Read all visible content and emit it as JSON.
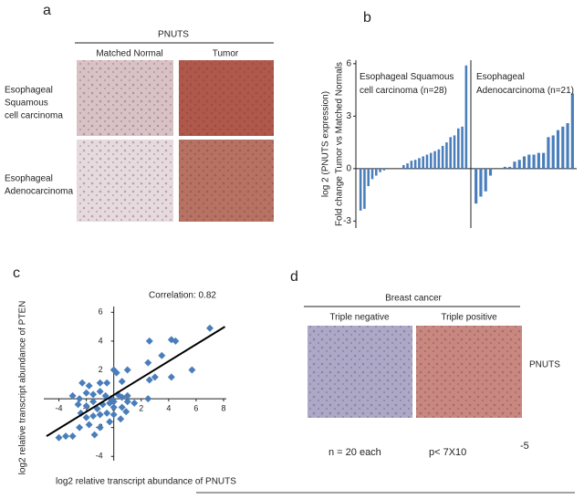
{
  "panel_labels": [
    "a",
    "b",
    "c",
    "d"
  ],
  "panel_a": {
    "title": "PNUTS",
    "columns": [
      "Matched Normal",
      "Tumor"
    ],
    "row_labels": [
      [
        "Esophageal",
        "Squamous",
        "cell carcinoma"
      ],
      [
        "Esophageal",
        "Adenocarcinoma"
      ]
    ]
  },
  "chart_data": [
    {
      "type": "bar",
      "ylabel": [
        "log 2 (PNUTS expression)",
        "Fold change Tumor vs Matched Normals"
      ],
      "ylim": [
        -3.4,
        6.2
      ],
      "yticks": [
        -3,
        0,
        3,
        6
      ],
      "series": [
        {
          "name": "Esophageal Squamous cell carcinoma (n=28)",
          "color": "#4a7ebb",
          "values": [
            -2.4,
            -2.3,
            -1.0,
            -0.6,
            -0.4,
            -0.2,
            -0.1,
            0,
            0,
            0,
            0,
            0.2,
            0.3,
            0.45,
            0.5,
            0.6,
            0.7,
            0.8,
            0.9,
            1.0,
            1.1,
            1.3,
            1.5,
            1.8,
            1.9,
            2.3,
            2.4,
            5.9
          ]
        },
        {
          "name": "Esophageal Adenocarcinoma (n=21)",
          "color": "#4a7ebb",
          "values": [
            -2.0,
            -1.6,
            -1.3,
            -0.4,
            0,
            0,
            0.1,
            0.1,
            0.4,
            0.5,
            0.7,
            0.8,
            0.8,
            0.9,
            0.9,
            1.8,
            1.9,
            2.2,
            2.4,
            2.6,
            4.3
          ]
        }
      ]
    },
    {
      "type": "scatter",
      "annotation": "Correlation: 0.82",
      "xlabel": "log2 relative transcript abundance of PNUTS",
      "ylabel": "log2 relative transcript abundance of PTEN",
      "color": "#4a7ebb",
      "xlim": [
        -5.1,
        8.2
      ],
      "ylim": [
        -4.3,
        6.4
      ],
      "xticks": [
        -4,
        -2,
        0,
        2,
        4,
        6,
        8
      ],
      "yticks": [
        -4,
        -2,
        2,
        4,
        6
      ],
      "x": [
        7,
        5.7,
        4.5,
        4.2,
        3.5,
        2.6,
        2.5,
        2.6,
        3,
        4.2,
        2.5,
        1,
        0.6,
        0,
        0.2,
        -0.5,
        -1,
        -1.8,
        -2.3,
        -3,
        -2.5,
        -2,
        -1.5,
        -1,
        -0.6,
        -0.2,
        0,
        0.3,
        0.6,
        1,
        1,
        0.6,
        0,
        -0.3,
        -0.8,
        -1.2,
        -1.5,
        -2,
        -2.6,
        -2.4,
        -2,
        -1.5,
        -1,
        -0.5,
        0,
        0.5,
        -0.3,
        -1,
        -1.8,
        -2.5,
        -3,
        -3.5,
        -4,
        -1.4,
        1.5,
        0.9
      ],
      "values": [
        4.9,
        2,
        4,
        4.1,
        3,
        4,
        2.5,
        1.3,
        1.5,
        1.5,
        0,
        2,
        1.2,
        2,
        1.8,
        1.1,
        1.1,
        0.9,
        1.1,
        0.2,
        0,
        0.4,
        0.3,
        0.5,
        0.2,
        0,
        -0.2,
        0.3,
        0.1,
        0.2,
        -0.2,
        -0.6,
        -0.6,
        -0.3,
        -0.4,
        -0.7,
        -0.2,
        -0.5,
        -0.4,
        -1,
        -1.3,
        -1.2,
        -1.1,
        -1,
        -1.1,
        -1.4,
        -1.6,
        -2,
        -1.8,
        -2,
        -2.6,
        -2.6,
        -2.7,
        -2.5,
        -0.3,
        -0.9
      ],
      "trendline": {
        "x": [
          -4.9,
          8.1
        ],
        "y": [
          -2.6,
          5.0
        ]
      }
    }
  ],
  "panel_d": {
    "title": "Breast cancer",
    "columns": [
      "Triple negative",
      "Triple positive"
    ],
    "row_label": "PNUTS",
    "sample_note": "n = 20 each",
    "p_value": "p< 7X10",
    "p_exponent": "-5"
  }
}
